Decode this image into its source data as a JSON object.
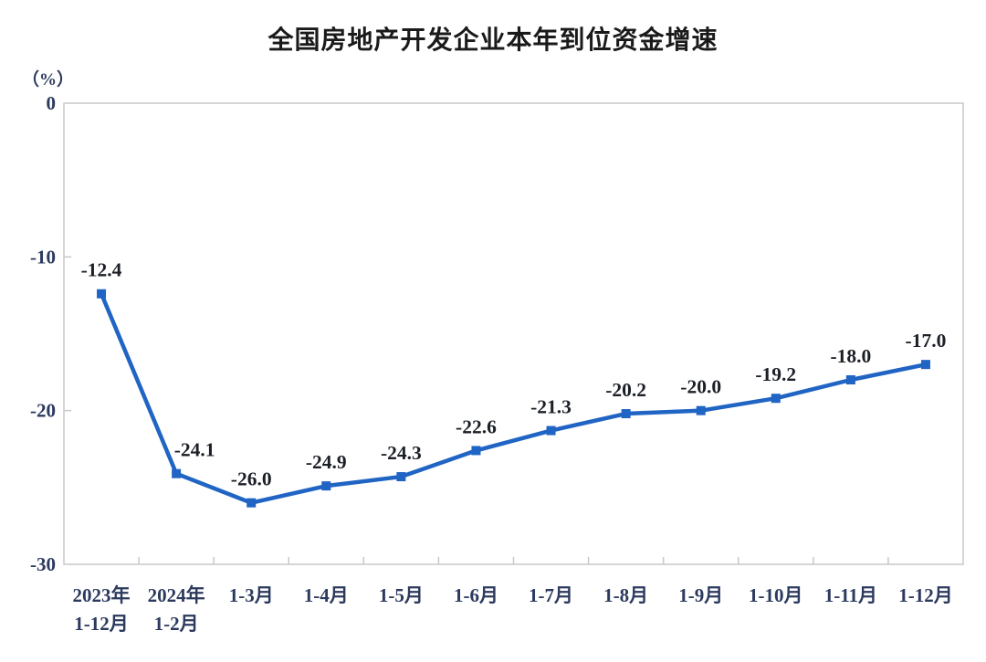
{
  "title": "全国房地产开发企业本年到位资金增速",
  "y_axis_unit": "（%）",
  "colors": {
    "line": "#2064C4",
    "marker": "#2064C4",
    "axis": "#C8C8C8",
    "title_text": "#1A1A1A",
    "data_label_text": "#1B1F26",
    "tick_label_text": "#2C3A5E",
    "background": "#FFFFFF"
  },
  "chart_data": {
    "type": "line",
    "title": "全国房地产开发企业本年到位资金增速",
    "ylabel": "（%）",
    "xlabel": "",
    "ylim": [
      -30,
      0
    ],
    "y_ticks": [
      0,
      -10,
      -20,
      -30
    ],
    "y_tick_labels": [
      "0",
      "-10",
      "-20",
      "-30"
    ],
    "grid": false,
    "legend_position": "none",
    "categories": [
      [
        "2023年",
        "1-12月"
      ],
      [
        "2024年",
        "1-2月"
      ],
      [
        "1-3月"
      ],
      [
        "1-4月"
      ],
      [
        "1-5月"
      ],
      [
        "1-6月"
      ],
      [
        "1-7月"
      ],
      [
        "1-8月"
      ],
      [
        "1-9月"
      ],
      [
        "1-10月"
      ],
      [
        "1-11月"
      ],
      [
        "1-12月"
      ]
    ],
    "series": [
      {
        "values": [
          -12.4,
          -24.1,
          -26.0,
          -24.9,
          -24.3,
          -22.6,
          -21.3,
          -20.2,
          -20.0,
          -19.2,
          -18.0,
          -17.0
        ],
        "data_labels": [
          "-12.4",
          "-24.1",
          "-26.0",
          "-24.9",
          "-24.3",
          "-22.6",
          "-21.3",
          "-20.2",
          "-20.0",
          "-19.2",
          "-18.0",
          "-17.0"
        ],
        "marker": "square",
        "line_width": 4.5
      }
    ]
  }
}
